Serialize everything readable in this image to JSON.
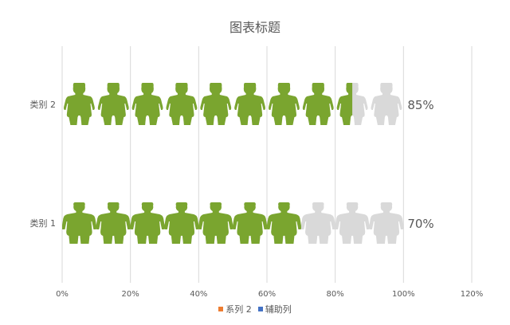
{
  "chart_data": {
    "type": "bar",
    "orientation": "horizontal",
    "title": "图表标题",
    "categories": [
      "类别 1",
      "类别 2"
    ],
    "series": [
      {
        "name": "系列 2",
        "values": [
          0.7,
          0.85
        ],
        "color": "#7aa52f",
        "legend_color": "#ed7d31"
      },
      {
        "name": "辅助列",
        "values": [
          1.0,
          1.0
        ],
        "color": "#d9d9d9",
        "legend_color": "#4472c4"
      }
    ],
    "data_labels": [
      "70%",
      "85%"
    ],
    "x_ticks": [
      "0%",
      "20%",
      "40%",
      "60%",
      "80%",
      "100%",
      "120%"
    ],
    "xlim": [
      0,
      1.2
    ],
    "icon_count": 10,
    "grid": true,
    "legend_position": "bottom"
  }
}
